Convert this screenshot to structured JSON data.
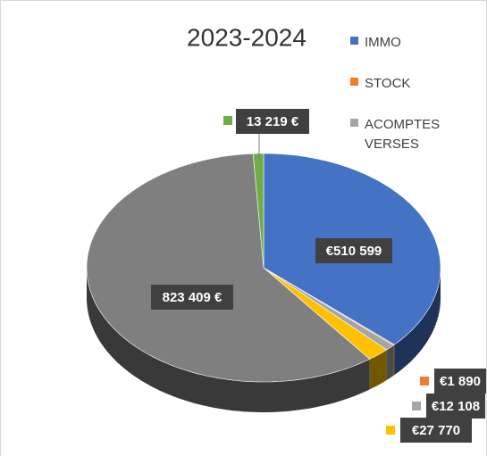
{
  "chart_data": {
    "type": "pie",
    "title": "2023-2024",
    "categories": [
      "IMMO",
      "STOCK",
      "ACOMPTES VERSES",
      null,
      null,
      null
    ],
    "values": [
      510599,
      1890,
      12108,
      27770,
      823409,
      13219
    ],
    "value_labels": [
      "€510 599",
      "€1 890",
      "€12 108",
      "€27 770",
      "823 409 €",
      "13 219 €"
    ],
    "colors": [
      "#4472c4",
      "#ed7d31",
      "#a5a5a5",
      "#ffc000",
      "#7f7f7f",
      "#70ad47"
    ],
    "legend": "right"
  }
}
